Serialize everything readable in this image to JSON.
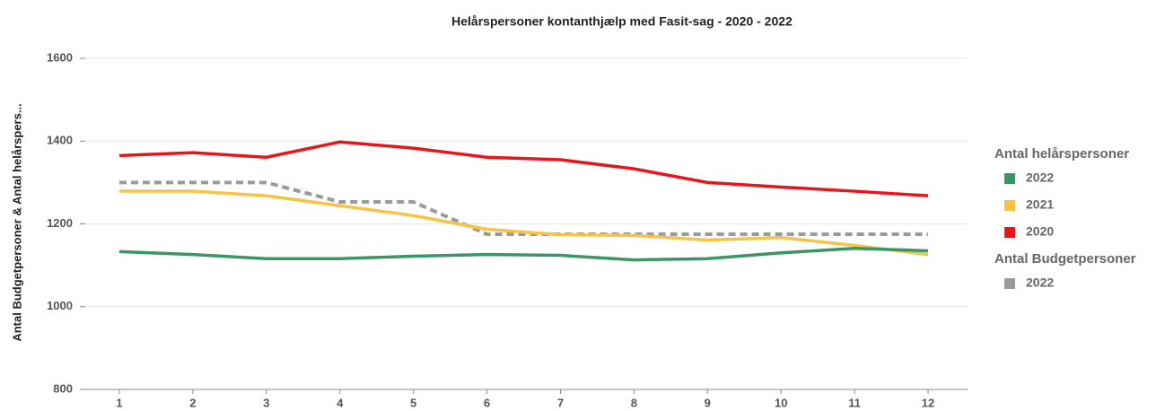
{
  "chart_data": {
    "type": "line",
    "title": "Helårspersoner kontanthjælp med Fasit-sag - 2020 - 2022",
    "y_label": "Antal Budgetpersoner & Antal helårspers...",
    "categories": [
      "1",
      "2",
      "3",
      "4",
      "5",
      "6",
      "7",
      "8",
      "9",
      "10",
      "11",
      "12"
    ],
    "ylim": [
      800,
      1600
    ],
    "yticks": [
      800,
      1000,
      1200,
      1400,
      1600
    ],
    "grid": true,
    "legend_groups": [
      {
        "title": "Antal helårspersoner",
        "series": [
          {
            "name": "2022",
            "color": "#3a9664",
            "values": [
              1133,
              1126,
              1116,
              1116,
              1122,
              1126,
              1124,
              1113,
              1116,
              1130,
              1141,
              1135
            ]
          },
          {
            "name": "2021",
            "color": "#f8c246",
            "values": [
              1279,
              1279,
              1268,
              1244,
              1220,
              1187,
              1174,
              1172,
              1161,
              1167,
              1148,
              1126
            ]
          },
          {
            "name": "2020",
            "color": "#e8161b",
            "values": [
              1365,
              1372,
              1361,
              1398,
              1383,
              1361,
              1355,
              1333,
              1300,
              1289,
              1279,
              1268
            ]
          }
        ]
      },
      {
        "title": "Antal Budgetpersoner",
        "dashed": true,
        "series": [
          {
            "name": "2022",
            "color": "#9a9a9a",
            "values": [
              1300,
              1300,
              1300,
              1253,
              1253,
              1175,
              1175,
              1175,
              1175,
              1175,
              1175,
              1175
            ]
          }
        ]
      }
    ]
  }
}
